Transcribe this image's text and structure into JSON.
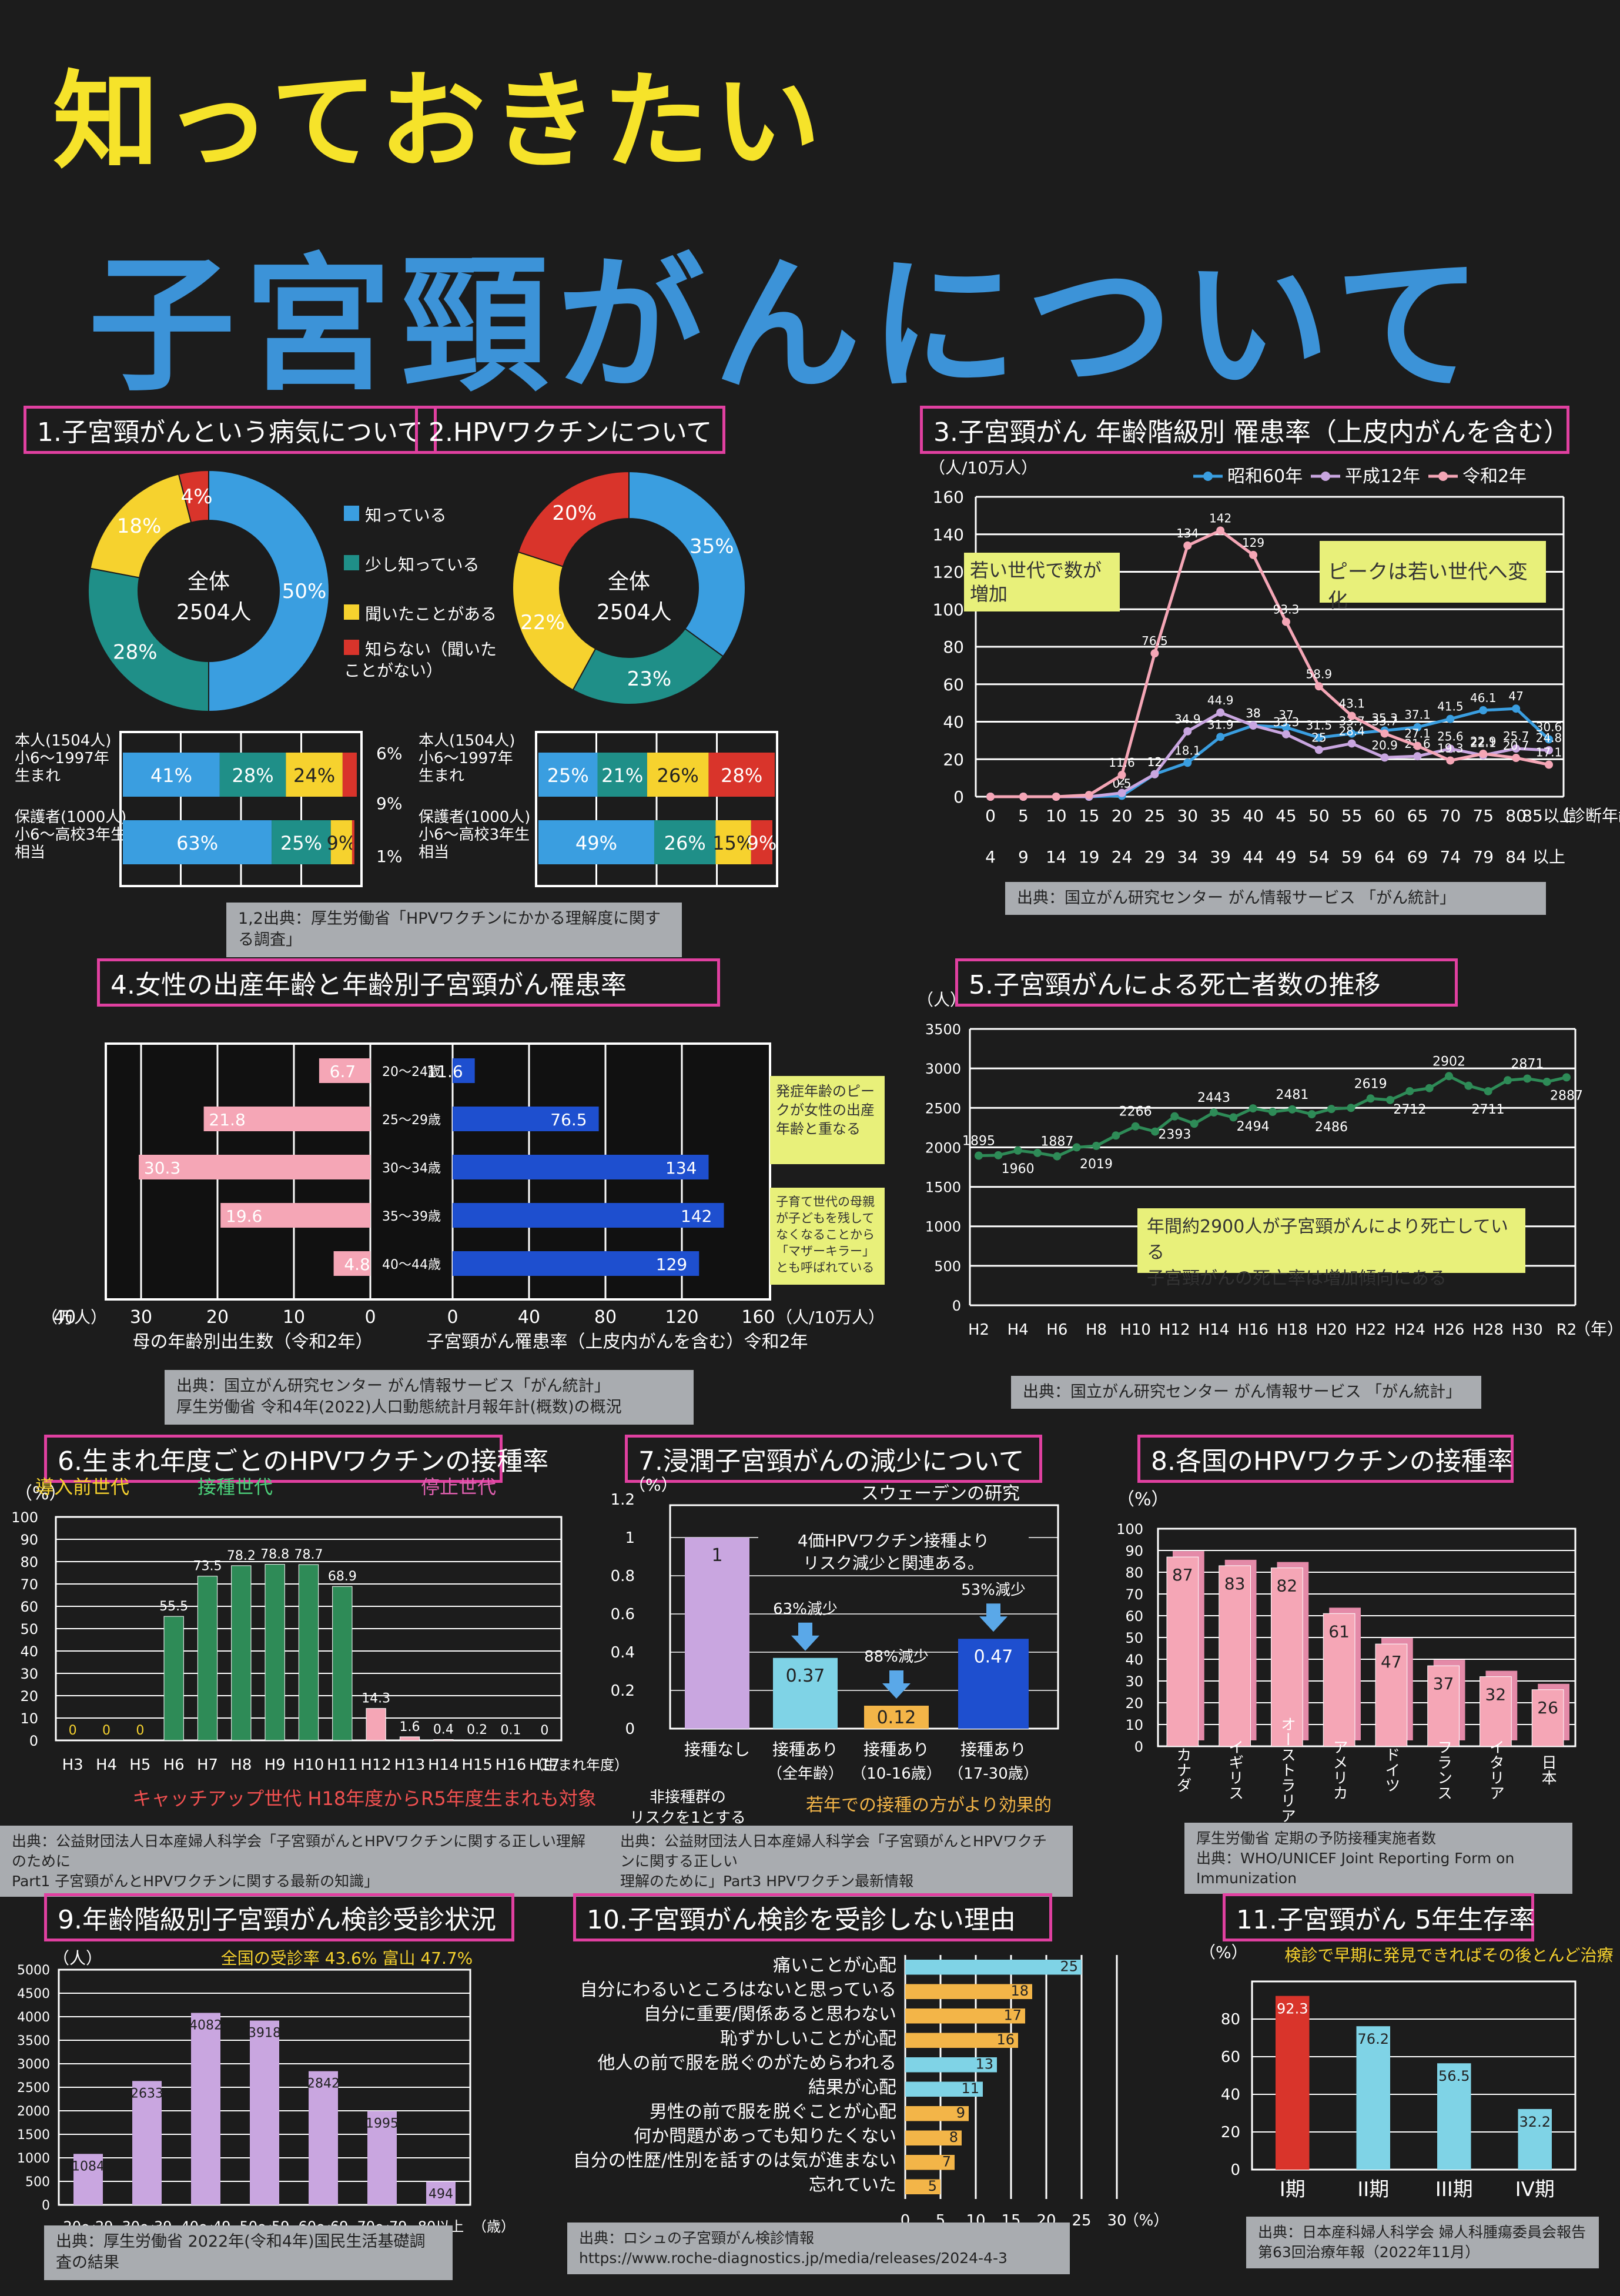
{
  "header": {
    "title1": "知っておきたい",
    "title2": "子宮頸がんについて"
  },
  "colors": {
    "blue": "#3a9ee0",
    "teal": "#1f8f88",
    "yellow": "#f6d22e",
    "red": "#d9342b",
    "pink": "#f5a6b6",
    "lavender": "#c9a6e0",
    "green": "#2e8b57",
    "navy": "#1e4fcf",
    "lightblue": "#7fd3e6",
    "orange": "#f3b548"
  },
  "sec1": {
    "title": "1.子宮頸がんという病気について",
    "center": [
      "全体",
      "2504人"
    ],
    "legend": [
      "知っている",
      "少し知っている",
      "聞いたことがある",
      "知らない（聞いたことがない）"
    ],
    "bar1_label": [
      "本人(1504人)",
      "小6～1997年",
      "生まれ"
    ],
    "bar2_label": [
      "保護者(1000人)",
      "小6～高校3年生",
      "相当"
    ],
    "side_pcts": [
      "6%",
      "9%",
      "1%"
    ]
  },
  "sec2": {
    "title": "2.HPVワクチンについて",
    "center": [
      "全体",
      "2504人"
    ],
    "bar1_label": [
      "本人(1504人)",
      "小6～1997年",
      "生まれ"
    ],
    "bar2_label": [
      "保護者(1000人)",
      "小6～高校3年生",
      "相当"
    ]
  },
  "source12": "1,2出典：厚生労働省「HPVワクチンにかかる理解度に関する調査」",
  "sec3": {
    "title": "3.子宮頸がん 年齢階級別 罹患率（上皮内がんを含む）",
    "unit": "（人/10万人）",
    "xunit": "（診断年齢）",
    "note1": "若い世代で数が増加",
    "note2": "ピークは若い世代へ変化",
    "source": "出典：国立がん研究センター がん情報サービス 「がん統計」"
  },
  "sec4": {
    "title": "4.女性の出産年齢と年齢別子宮頸がん罹患率",
    "left_unit": "（万人）",
    "right_unit": "（人/10万人）",
    "left_title": "母の年齢別出生数（令和2年）",
    "right_title": "子宮頸がん罹患率（上皮内がんを含む）令和2年",
    "note1": "発症年齢のピークが女性の出産年齢と重なる",
    "note2": "子育て世代の母親が子どもを残してなくなることから「マザーキラー」とも呼ばれている",
    "source": [
      "出典：国立がん研究センター がん情報サービス「がん統計」",
      "厚生労働省 令和4年(2022)人口動態統計月報年計(概数)の概況"
    ]
  },
  "sec5": {
    "title": "5.子宮頸がんによる死亡者数の推移",
    "unit": "（人）",
    "xunit": "（年）",
    "note": [
      "年間約2900人が子宮頸がんにより死亡している",
      "子宮頸がんの死亡率は増加傾向にある"
    ],
    "source": "出典：国立がん研究センター がん情報サービス 「がん統計」"
  },
  "sec6": {
    "title": "6.生まれ年度ごとのHPVワクチンの接種率",
    "unit": "（%）",
    "lab_intro": "導入前世代",
    "lab_vacc": "接種世代",
    "lab_stop": "停止世代",
    "xunit": "（生まれ年度）",
    "catchup": "キャッチアップ世代 H18年度からR5年度生まれも対象"
  },
  "sec7": {
    "title": "7.浸潤子宮頸がんの減少について",
    "subtitle": "スウェーデンの研究",
    "unit": "（%）",
    "box": [
      "4価HPVワクチン接種より",
      "リスク減少と関連ある。"
    ],
    "nonlabel": [
      "非接種群の",
      "リスクを1とする"
    ],
    "bottom": "若年での接種の方がより効果的"
  },
  "sec8": {
    "title": "8.各国のHPVワクチンの接種率",
    "unit": "（%）"
  },
  "source67": [
    "出典：公益財団法人日本産婦人科学会「子宮頸がんとHPVワクチンに関する正しい理解のために",
    "Part1 子宮頸がんとHPVワクチンに関する最新の知識」"
  ],
  "source7b": [
    "出典：公益財団法人日本産婦人科学会「子宮頸がんとHPVワクチンに関する正しい",
    "理解のために」Part3 HPVワクチン最新情報"
  ],
  "source8": [
    "厚生労働省 定期の予防接種実施者数",
    "出典：WHO/UNICEF Joint Reporting Form on",
    "Immunization"
  ],
  "sec9": {
    "title": "9.年齢階級別子宮頸がん検診受診状況",
    "unit": "（人）",
    "rate": "全国の受診率 43.6% 富山 47.7%",
    "xunit": "（歳）",
    "source": "出典：厚生労働省 2022年(令和4年)国民生活基礎調査の結果"
  },
  "sec10": {
    "title": "10.子宮頸がん検診を受診しない理由",
    "xunit": "（%）",
    "source": [
      "出典：ロシュの子宮頸がん検診情報",
      "https://www.roche-diagnostics.jp/media/releases/2024-4-3"
    ]
  },
  "sec11": {
    "title": "11.子宮頸がん 5年生存率",
    "unit": "（%）",
    "note": "検診で早期に発見できればその後とんど治療",
    "source": [
      "出典：日本産科婦人科学会 婦人科腫瘍委員会報告",
      "第63回治療年報（2022年11月）"
    ]
  },
  "chart_data": [
    {
      "type": "pie",
      "id": "c1",
      "title": "1.子宮頸がんという病気について",
      "labels": [
        "知っている",
        "少し知っている",
        "聞いたことがある",
        "知らない"
      ],
      "values": [
        50,
        28,
        18,
        4
      ]
    },
    {
      "type": "bar",
      "id": "c1b",
      "title": "1.子宮頸がんという病気について",
      "categories": [
        "本人",
        "保護者"
      ],
      "series": [
        {
          "name": "知っている",
          "values": [
            41,
            63
          ]
        },
        {
          "name": "少し知っている",
          "values": [
            28,
            25
          ]
        },
        {
          "name": "聞いたことがある",
          "values": [
            24,
            9
          ]
        },
        {
          "name": "知らない",
          "values": [
            6,
            1
          ]
        }
      ]
    },
    {
      "type": "pie",
      "id": "c2",
      "title": "2.HPVワクチンについて",
      "labels": [
        "知っている",
        "少し知っている",
        "聞いたことがある",
        "知らない"
      ],
      "values": [
        35,
        23,
        22,
        20
      ]
    },
    {
      "type": "bar",
      "id": "c2b",
      "title": "2.HPVワクチンについて",
      "categories": [
        "本人",
        "保護者"
      ],
      "series": [
        {
          "name": "知っている",
          "values": [
            25,
            49
          ]
        },
        {
          "name": "少し知っている",
          "values": [
            21,
            26
          ]
        },
        {
          "name": "聞いたことがある",
          "values": [
            26,
            15
          ]
        },
        {
          "name": "知らない",
          "values": [
            28,
            9
          ]
        }
      ]
    },
    {
      "type": "line",
      "id": "c3",
      "title": "3.子宮頸がん 年齢階級別 罹患率",
      "ylim": [
        0,
        160
      ],
      "x": [
        "0～4",
        "5～9",
        "10～14",
        "15～19",
        "20～24",
        "25～29",
        "30～34",
        "35～39",
        "40～44",
        "45～49",
        "50～54",
        "55～59",
        "60～64",
        "65～69",
        "70～74",
        "75～79",
        "80～84",
        "85以上"
      ],
      "series": [
        {
          "name": "昭和60年",
          "values": [
            0,
            0,
            0,
            0,
            0.5,
            12,
            18.1,
            31.9,
            38,
            37,
            31.5,
            33.7,
            35.3,
            37.1,
            41.5,
            46.1,
            47,
            30.6
          ]
        },
        {
          "name": "平成12年",
          "values": [
            0,
            0,
            0,
            0,
            2,
            12,
            34.9,
            44.9,
            38,
            33.3,
            25,
            28.4,
            20.9,
            21.6,
            25.6,
            22.1,
            25.7,
            24.8
          ]
        },
        {
          "name": "令和2年",
          "values": [
            0,
            0,
            0,
            0.9,
            11.6,
            76.5,
            134,
            142,
            129,
            93.3,
            58.9,
            43.1,
            33.7,
            27.1,
            19.3,
            22.9,
            20.7,
            17.1
          ]
        }
      ]
    },
    {
      "type": "bar",
      "id": "c4l",
      "title": "母の年齢別出生数（令和2年）",
      "categories": [
        "20～24歳",
        "25～29歳",
        "30～34歳",
        "35～39歳",
        "40～44歳"
      ],
      "values": [
        6.7,
        21.8,
        30.3,
        19.6,
        4.8
      ],
      "xlim": [
        40,
        0
      ]
    },
    {
      "type": "bar",
      "id": "c4r",
      "title": "子宮頸がん罹患率 令和2年",
      "categories": [
        "20～24歳",
        "25～29歳",
        "30～34歳",
        "35～39歳",
        "40～44歳"
      ],
      "values": [
        11.6,
        76.5,
        134,
        142,
        129
      ],
      "xlim": [
        0,
        160
      ]
    },
    {
      "type": "line",
      "id": "c5",
      "title": "5.子宮頸がんによる死亡者数の推移",
      "ylim": [
        0,
        3500
      ],
      "x": [
        "H2",
        "H3",
        "H4",
        "H5",
        "H6",
        "H7",
        "H8",
        "H9",
        "H10",
        "H11",
        "H12",
        "H13",
        "H14",
        "H15",
        "H16",
        "H17",
        "H18",
        "H19",
        "H20",
        "H21",
        "H22",
        "H23",
        "H24",
        "H25",
        "H26",
        "H27",
        "H28",
        "H29",
        "H30",
        "R1",
        "R2"
      ],
      "values": [
        1895,
        1900,
        1960,
        1930,
        1887,
        2000,
        2019,
        2150,
        2266,
        2200,
        2393,
        2300,
        2443,
        2380,
        2494,
        2450,
        2481,
        2420,
        2486,
        2500,
        2619,
        2600,
        2712,
        2750,
        2902,
        2780,
        2711,
        2850,
        2871,
        2830,
        2887
      ]
    },
    {
      "type": "bar",
      "id": "c6",
      "title": "6.生まれ年度ごとのHPVワクチンの接種率",
      "ylim": [
        0,
        100
      ],
      "categories": [
        "H3",
        "H4",
        "H5",
        "H6",
        "H7",
        "H8",
        "H9",
        "H10",
        "H11",
        "H12",
        "H13",
        "H14",
        "H15",
        "H16",
        "H17"
      ],
      "values": [
        0,
        0,
        0,
        55.5,
        73.5,
        78.2,
        78.8,
        78.7,
        68.9,
        14.3,
        1.6,
        0.4,
        0.2,
        0.1,
        0
      ]
    },
    {
      "type": "bar",
      "id": "c7",
      "title": "7.浸潤子宮頸がんの減少について",
      "ylim": [
        0,
        1.2
      ],
      "categories": [
        "接種なし",
        "接種あり（全年齢）",
        "接種あり（10-16歳）",
        "接種あり（17-30歳）"
      ],
      "values": [
        1,
        0.37,
        0.12,
        0.47
      ],
      "annotations": [
        "63%減少",
        "88%減少",
        "53%減少"
      ]
    },
    {
      "type": "bar",
      "id": "c8",
      "title": "8.各国のHPVワクチンの接種率",
      "ylim": [
        0,
        100
      ],
      "categories": [
        "カナダ",
        "イギリス",
        "オーストラリア",
        "アメリカ",
        "ドイツ",
        "フランス",
        "イタリア",
        "日本"
      ],
      "values": [
        87,
        83,
        82,
        61,
        47,
        37,
        32,
        26
      ]
    },
    {
      "type": "bar",
      "id": "c9",
      "title": "9.年齢階級別子宮頸がん検診受診状況",
      "ylim": [
        0,
        5000
      ],
      "categories": [
        "20～29",
        "30～39",
        "40～49",
        "50～59",
        "60～69",
        "70～79",
        "80以上"
      ],
      "values": [
        1084,
        2633,
        4082,
        3918,
        2842,
        1995,
        494
      ]
    },
    {
      "type": "bar",
      "id": "c10",
      "title": "10.子宮頸がん検診を受診しない理由",
      "xlim": [
        0,
        30
      ],
      "categories": [
        "痛いことが心配",
        "自分にわるいところはないと思っている",
        "自分に重要/関係あると思わない",
        "恥ずかしいことが心配",
        "他人の前で服を脱ぐのがためらわれる",
        "結果が心配",
        "男性の前で服を脱ぐことが心配",
        "何か問題があっても知りたくない",
        "自分の性歴/性別を話すのは気が進まない",
        "忘れていた"
      ],
      "values": [
        25,
        18,
        17,
        16,
        13,
        11,
        9,
        8,
        7,
        5
      ]
    },
    {
      "type": "bar",
      "id": "c11",
      "title": "11.子宮頸がん 5年生存率",
      "ylim": [
        0,
        100
      ],
      "categories": [
        "I期",
        "II期",
        "III期",
        "IV期"
      ],
      "values": [
        92.3,
        76.2,
        56.5,
        32.2
      ]
    }
  ]
}
